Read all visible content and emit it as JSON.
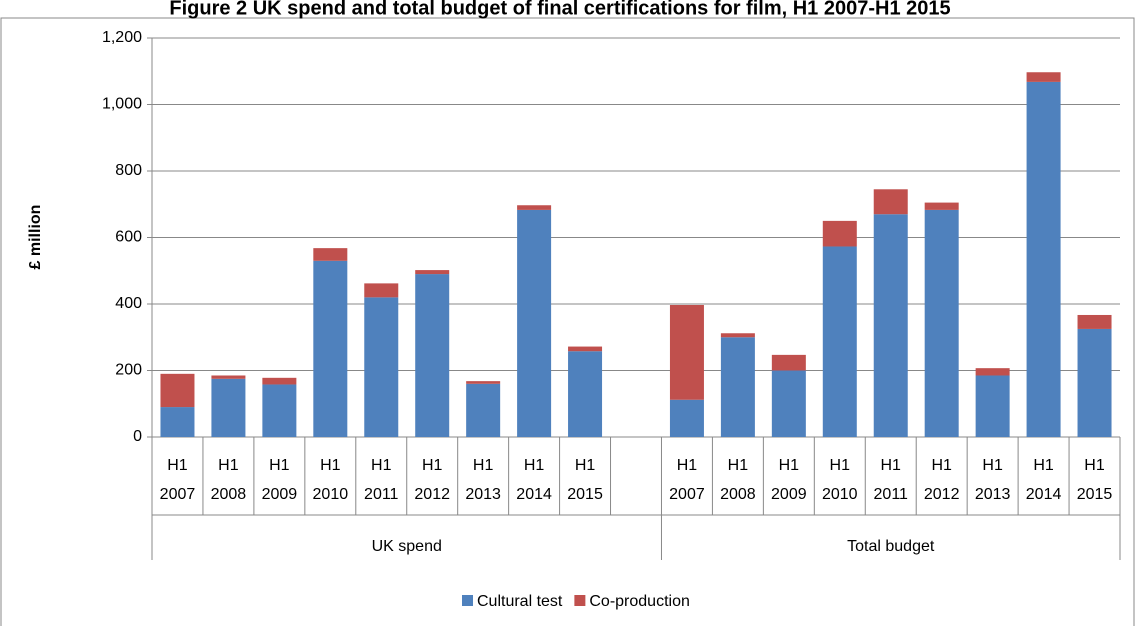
{
  "chart_data": {
    "type": "bar",
    "stacked": true,
    "title": "Figure 2 UK spend and total budget of final certifications for film, H1 2007-H1 2015",
    "y_label": "£ million",
    "groups": [
      {
        "name": "UK spend",
        "categories": [
          "H1 2007",
          "H1 2008",
          "H1 2009",
          "H1 2010",
          "H1 2011",
          "H1 2012",
          "H1 2013",
          "H1 2014",
          "H1 2015",
          null
        ]
      },
      {
        "name": "Total budget",
        "categories": [
          "H1 2007",
          "H1 2008",
          "H1 2009",
          "H1 2010",
          "H1 2011",
          "H1 2012",
          "H1 2013",
          "H1 2014",
          "H1 2015"
        ]
      }
    ],
    "series": [
      {
        "name": "Cultural test",
        "color": "#4f81bd",
        "values": [
          90,
          175,
          158,
          530,
          420,
          490,
          160,
          683,
          258,
          null,
          112,
          300,
          200,
          573,
          670,
          683,
          185,
          1068,
          325
        ]
      },
      {
        "name": "Co-production",
        "color": "#c0504d",
        "values": [
          100,
          10,
          20,
          38,
          42,
          12,
          8,
          14,
          14,
          null,
          285,
          12,
          47,
          77,
          75,
          22,
          22,
          29,
          42
        ]
      }
    ],
    "ylim": [
      0,
      1200
    ],
    "yticks": [
      0,
      200,
      400,
      600,
      800,
      {
        "value": 1000,
        "label": "1,000"
      },
      {
        "value": 1200,
        "label": "1,200"
      }
    ],
    "grid": true,
    "legend": "bottom"
  }
}
